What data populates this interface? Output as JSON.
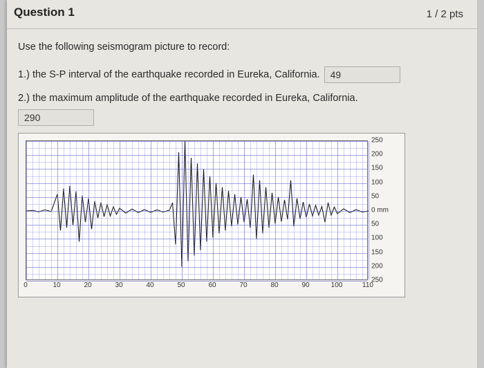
{
  "header": {
    "title": "Question 1",
    "points": "1 / 2 pts"
  },
  "instruction": "Use the following seismogram picture to record:",
  "q1": {
    "text": "1.) the S-P interval of the earthquake recorded in Eureka, California.",
    "value": "49"
  },
  "q2": {
    "text": "2.) the maximum amplitude of the earthquake recorded in Eureka, California.",
    "value": "290"
  },
  "chart": {
    "type": "seismogram",
    "x_axis": {
      "min": 0,
      "max": 110,
      "tick_step": 10,
      "ticks": [
        "0",
        "10",
        "20",
        "30",
        "40",
        "50",
        "60",
        "70",
        "80",
        "90",
        "100",
        "110"
      ]
    },
    "y_axis": {
      "min": -250,
      "max": 250,
      "tick_step": 50,
      "ticks_top_to_bottom": [
        "250",
        "200",
        "150",
        "100",
        "50",
        "0 mm",
        "50",
        "100",
        "150",
        "200",
        "250"
      ]
    },
    "grid_color": "#7b7de0",
    "background_color": "#ffffff",
    "line_color": "#1a1a1a",
    "line_width": 1.1,
    "waveform_points": [
      [
        0,
        0
      ],
      [
        2,
        2
      ],
      [
        4,
        -3
      ],
      [
        6,
        4
      ],
      [
        8,
        -2
      ],
      [
        10,
        60
      ],
      [
        11,
        -70
      ],
      [
        12,
        80
      ],
      [
        13,
        -60
      ],
      [
        14,
        90
      ],
      [
        15,
        -50
      ],
      [
        16,
        70
      ],
      [
        17,
        -110
      ],
      [
        18,
        55
      ],
      [
        19,
        -40
      ],
      [
        20,
        45
      ],
      [
        21,
        -65
      ],
      [
        22,
        35
      ],
      [
        23,
        -25
      ],
      [
        24,
        30
      ],
      [
        25,
        -20
      ],
      [
        26,
        22
      ],
      [
        27,
        -18
      ],
      [
        28,
        15
      ],
      [
        29,
        -12
      ],
      [
        30,
        10
      ],
      [
        32,
        -8
      ],
      [
        34,
        7
      ],
      [
        36,
        -6
      ],
      [
        38,
        5
      ],
      [
        40,
        -5
      ],
      [
        42,
        4
      ],
      [
        44,
        -4
      ],
      [
        46,
        3
      ],
      [
        47,
        30
      ],
      [
        48,
        -120
      ],
      [
        49,
        210
      ],
      [
        50,
        -200
      ],
      [
        51,
        250
      ],
      [
        52,
        -180
      ],
      [
        53,
        190
      ],
      [
        54,
        -160
      ],
      [
        55,
        170
      ],
      [
        56,
        -140
      ],
      [
        57,
        150
      ],
      [
        58,
        -110
      ],
      [
        59,
        125
      ],
      [
        60,
        -95
      ],
      [
        61,
        100
      ],
      [
        62,
        -80
      ],
      [
        63,
        85
      ],
      [
        64,
        -70
      ],
      [
        65,
        72
      ],
      [
        66,
        -55
      ],
      [
        67,
        60
      ],
      [
        68,
        -48
      ],
      [
        69,
        50
      ],
      [
        70,
        -40
      ],
      [
        71,
        42
      ],
      [
        72,
        -60
      ],
      [
        73,
        130
      ],
      [
        74,
        -100
      ],
      [
        75,
        110
      ],
      [
        76,
        -80
      ],
      [
        77,
        85
      ],
      [
        78,
        -60
      ],
      [
        79,
        65
      ],
      [
        80,
        -45
      ],
      [
        81,
        50
      ],
      [
        82,
        -38
      ],
      [
        83,
        40
      ],
      [
        84,
        -30
      ],
      [
        85,
        110
      ],
      [
        86,
        -55
      ],
      [
        87,
        45
      ],
      [
        88,
        -28
      ],
      [
        89,
        32
      ],
      [
        90,
        -22
      ],
      [
        91,
        25
      ],
      [
        92,
        -18
      ],
      [
        93,
        20
      ],
      [
        94,
        -15
      ],
      [
        95,
        16
      ],
      [
        96,
        -40
      ],
      [
        97,
        30
      ],
      [
        98,
        -15
      ],
      [
        99,
        14
      ],
      [
        100,
        -10
      ],
      [
        102,
        8
      ],
      [
        104,
        -6
      ],
      [
        106,
        5
      ],
      [
        108,
        -4
      ],
      [
        110,
        0
      ]
    ]
  }
}
